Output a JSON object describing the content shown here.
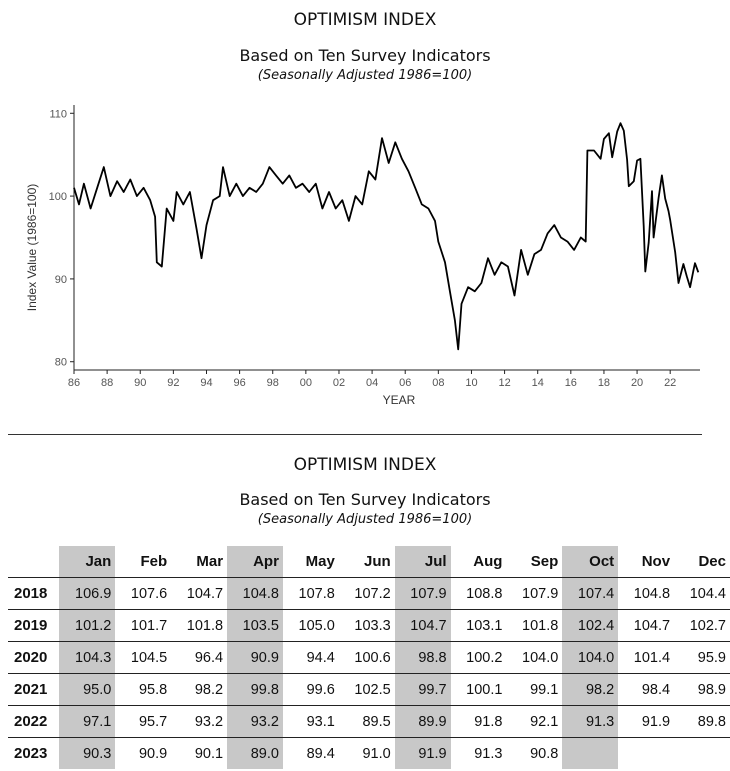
{
  "chart_section": {
    "title": "OPTIMISM INDEX",
    "subtitle": "Based on Ten Survey Indicators",
    "note": "(Seasonally Adjusted 1986=100)"
  },
  "table_section": {
    "title": "OPTIMISM INDEX",
    "subtitle": "Based on Ten Survey Indicators",
    "note": "(Seasonally Adjusted 1986=100)",
    "months": [
      "Jan",
      "Feb",
      "Mar",
      "Apr",
      "May",
      "Jun",
      "Jul",
      "Aug",
      "Sep",
      "Oct",
      "Nov",
      "Dec"
    ],
    "shaded_months": [
      "Jan",
      "Apr",
      "Jul",
      "Oct"
    ],
    "rows": [
      {
        "year": "2018",
        "values": [
          "106.9",
          "107.6",
          "104.7",
          "104.8",
          "107.8",
          "107.2",
          "107.9",
          "108.8",
          "107.9",
          "107.4",
          "104.8",
          "104.4"
        ]
      },
      {
        "year": "2019",
        "values": [
          "101.2",
          "101.7",
          "101.8",
          "103.5",
          "105.0",
          "103.3",
          "104.7",
          "103.1",
          "101.8",
          "102.4",
          "104.7",
          "102.7"
        ]
      },
      {
        "year": "2020",
        "values": [
          "104.3",
          "104.5",
          "96.4",
          "90.9",
          "94.4",
          "100.6",
          "98.8",
          "100.2",
          "104.0",
          "104.0",
          "101.4",
          "95.9"
        ]
      },
      {
        "year": "2021",
        "values": [
          "95.0",
          "95.8",
          "98.2",
          "99.8",
          "99.6",
          "102.5",
          "99.7",
          "100.1",
          "99.1",
          "98.2",
          "98.4",
          "98.9"
        ]
      },
      {
        "year": "2022",
        "values": [
          "97.1",
          "95.7",
          "93.2",
          "93.2",
          "93.1",
          "89.5",
          "89.9",
          "91.8",
          "92.1",
          "91.3",
          "91.9",
          "89.8"
        ]
      },
      {
        "year": "2023",
        "values": [
          "90.3",
          "90.9",
          "90.1",
          "89.0",
          "89.4",
          "91.0",
          "91.9",
          "91.3",
          "90.8",
          "",
          "",
          ""
        ]
      }
    ]
  },
  "chart_data": {
    "type": "line",
    "title": "OPTIMISM INDEX",
    "xlabel": "YEAR",
    "ylabel": "Index Value (1986=100)",
    "xlim": [
      1986,
      2023.8
    ],
    "ylim": [
      79,
      111
    ],
    "x_ticks": [
      1986,
      1988,
      1990,
      1992,
      1994,
      1996,
      1998,
      2000,
      2002,
      2004,
      2006,
      2008,
      2010,
      2012,
      2014,
      2016,
      2018,
      2020,
      2022
    ],
    "x_tick_labels": [
      "86",
      "88",
      "90",
      "92",
      "94",
      "96",
      "98",
      "00",
      "02",
      "04",
      "06",
      "08",
      "10",
      "12",
      "14",
      "16",
      "18",
      "20",
      "22"
    ],
    "y_ticks": [
      80,
      90,
      100,
      110
    ],
    "y_tick_labels": [
      "80",
      "90",
      "100",
      "110"
    ],
    "series": [
      {
        "name": "Optimism Index",
        "color": "#000000",
        "points": [
          [
            1986.0,
            101.0
          ],
          [
            1986.3,
            99.0
          ],
          [
            1986.6,
            101.5
          ],
          [
            1987.0,
            98.5
          ],
          [
            1987.4,
            101.0
          ],
          [
            1987.8,
            103.5
          ],
          [
            1988.2,
            100.0
          ],
          [
            1988.6,
            101.8
          ],
          [
            1989.0,
            100.5
          ],
          [
            1989.4,
            102.0
          ],
          [
            1989.8,
            100.0
          ],
          [
            1990.2,
            101.0
          ],
          [
            1990.6,
            99.5
          ],
          [
            1990.9,
            97.5
          ],
          [
            1991.0,
            92.0
          ],
          [
            1991.3,
            91.5
          ],
          [
            1991.6,
            98.5
          ],
          [
            1992.0,
            97.0
          ],
          [
            1992.2,
            100.5
          ],
          [
            1992.6,
            99.0
          ],
          [
            1993.0,
            100.5
          ],
          [
            1993.4,
            96.0
          ],
          [
            1993.7,
            92.5
          ],
          [
            1994.0,
            96.5
          ],
          [
            1994.4,
            99.5
          ],
          [
            1994.8,
            100.0
          ],
          [
            1995.0,
            103.5
          ],
          [
            1995.4,
            100.0
          ],
          [
            1995.8,
            101.5
          ],
          [
            1996.2,
            100.0
          ],
          [
            1996.6,
            101.0
          ],
          [
            1997.0,
            100.5
          ],
          [
            1997.4,
            101.5
          ],
          [
            1997.8,
            103.5
          ],
          [
            1998.2,
            102.5
          ],
          [
            1998.6,
            101.5
          ],
          [
            1999.0,
            102.5
          ],
          [
            1999.4,
            101.0
          ],
          [
            1999.8,
            101.5
          ],
          [
            2000.2,
            100.5
          ],
          [
            2000.6,
            101.5
          ],
          [
            2001.0,
            98.5
          ],
          [
            2001.4,
            100.5
          ],
          [
            2001.8,
            98.5
          ],
          [
            2002.2,
            99.5
          ],
          [
            2002.6,
            97.0
          ],
          [
            2003.0,
            100.0
          ],
          [
            2003.4,
            99.0
          ],
          [
            2003.8,
            103.0
          ],
          [
            2004.2,
            102.0
          ],
          [
            2004.6,
            107.0
          ],
          [
            2005.0,
            104.0
          ],
          [
            2005.4,
            106.5
          ],
          [
            2005.8,
            104.5
          ],
          [
            2006.2,
            103.0
          ],
          [
            2006.6,
            101.0
          ],
          [
            2007.0,
            99.0
          ],
          [
            2007.4,
            98.5
          ],
          [
            2007.8,
            97.0
          ],
          [
            2008.0,
            94.5
          ],
          [
            2008.4,
            92.0
          ],
          [
            2008.7,
            88.5
          ],
          [
            2009.0,
            85.0
          ],
          [
            2009.2,
            81.5
          ],
          [
            2009.4,
            87.0
          ],
          [
            2009.8,
            89.0
          ],
          [
            2010.2,
            88.5
          ],
          [
            2010.6,
            89.5
          ],
          [
            2011.0,
            92.5
          ],
          [
            2011.4,
            90.5
          ],
          [
            2011.8,
            92.0
          ],
          [
            2012.2,
            91.5
          ],
          [
            2012.6,
            88.0
          ],
          [
            2013.0,
            93.5
          ],
          [
            2013.4,
            90.5
          ],
          [
            2013.8,
            93.0
          ],
          [
            2014.2,
            93.5
          ],
          [
            2014.6,
            95.5
          ],
          [
            2015.0,
            96.5
          ],
          [
            2015.4,
            95.0
          ],
          [
            2015.8,
            94.5
          ],
          [
            2016.2,
            93.5
          ],
          [
            2016.6,
            95.0
          ],
          [
            2016.9,
            94.5
          ],
          [
            2017.0,
            105.5
          ],
          [
            2017.4,
            105.5
          ],
          [
            2017.8,
            104.5
          ],
          [
            2018.0,
            106.9
          ],
          [
            2018.3,
            107.6
          ],
          [
            2018.5,
            104.7
          ],
          [
            2018.8,
            107.8
          ],
          [
            2019.0,
            108.8
          ],
          [
            2019.2,
            107.9
          ],
          [
            2019.4,
            104.4
          ],
          [
            2019.5,
            101.2
          ],
          [
            2019.8,
            101.8
          ],
          [
            2020.0,
            104.3
          ],
          [
            2020.2,
            104.5
          ],
          [
            2020.4,
            96.4
          ],
          [
            2020.5,
            90.9
          ],
          [
            2020.7,
            94.4
          ],
          [
            2020.9,
            100.6
          ],
          [
            2021.0,
            95.0
          ],
          [
            2021.3,
            99.8
          ],
          [
            2021.5,
            102.5
          ],
          [
            2021.7,
            99.7
          ],
          [
            2021.9,
            98.2
          ],
          [
            2022.0,
            97.1
          ],
          [
            2022.3,
            93.2
          ],
          [
            2022.5,
            89.5
          ],
          [
            2022.8,
            91.8
          ],
          [
            2023.0,
            90.3
          ],
          [
            2023.2,
            89.0
          ],
          [
            2023.4,
            91.0
          ],
          [
            2023.5,
            91.9
          ],
          [
            2023.7,
            90.8
          ]
        ]
      }
    ]
  }
}
